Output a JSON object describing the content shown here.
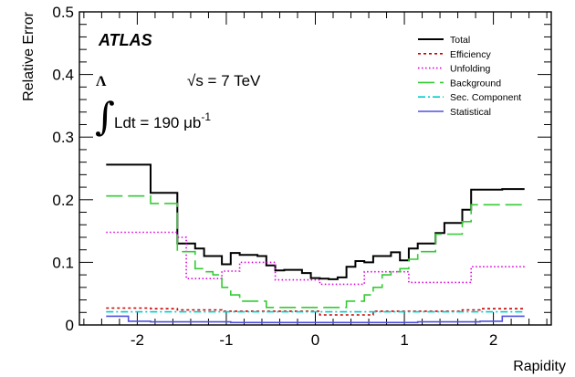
{
  "chart_data": {
    "type": "line",
    "xlabel": "Rapidity",
    "ylabel": "Relative Error",
    "xlim": [
      -2.65,
      2.65
    ],
    "ylim": [
      0,
      0.5
    ],
    "x_ticks": [
      "-2",
      "-1",
      "0",
      "1",
      "2"
    ],
    "y_ticks": [
      "0",
      "0.1",
      "0.2",
      "0.3",
      "0.4",
      "0.5"
    ],
    "grid": false,
    "legend_position": "top-right",
    "annotations": {
      "experiment": "ATLAS",
      "energy": "√s = 7 TeV",
      "lumi_symbol": "Λ",
      "lumi_integral": "∫",
      "lumi_text": "Ldt = 190 μb",
      "lumi_exp": "-1"
    },
    "bin_edges": [
      -2.35,
      -2.1,
      -1.85,
      -1.75,
      -1.55,
      -1.45,
      -1.35,
      -1.25,
      -1.15,
      -1.05,
      -0.95,
      -0.85,
      -0.75,
      -0.65,
      -0.55,
      -0.45,
      -0.35,
      -0.25,
      -0.15,
      -0.05,
      0.05,
      0.15,
      0.25,
      0.35,
      0.45,
      0.55,
      0.65,
      0.75,
      0.85,
      0.95,
      1.05,
      1.15,
      1.25,
      1.35,
      1.45,
      1.55,
      1.65,
      1.75,
      1.85,
      2.1,
      2.35
    ],
    "series": [
      {
        "name": "Total",
        "color": "#000000",
        "dash": "",
        "values": [
          0.256,
          0.256,
          0.211,
          0.211,
          0.13,
          0.13,
          0.122,
          0.11,
          0.11,
          0.097,
          0.115,
          0.112,
          0.112,
          0.11,
          0.095,
          0.087,
          0.088,
          0.088,
          0.083,
          0.075,
          0.074,
          0.073,
          0.076,
          0.093,
          0.102,
          0.1,
          0.11,
          0.11,
          0.116,
          0.103,
          0.122,
          0.13,
          0.13,
          0.147,
          0.163,
          0.163,
          0.184,
          0.216,
          0.216,
          0.217
        ]
      },
      {
        "name": "Efficiency",
        "color": "#cc0000",
        "dash": "3,3",
        "values": [
          0.027,
          0.027,
          0.026,
          0.026,
          0.024,
          0.024,
          0.024,
          0.024,
          0.024,
          0.022,
          0.022,
          0.022,
          0.022,
          0.022,
          0.022,
          0.022,
          0.022,
          0.022,
          0.022,
          0.022,
          0.016,
          0.016,
          0.016,
          0.016,
          0.016,
          0.016,
          0.022,
          0.022,
          0.022,
          0.022,
          0.022,
          0.022,
          0.022,
          0.022,
          0.022,
          0.022,
          0.024,
          0.024,
          0.026,
          0.026
        ]
      },
      {
        "name": "Unfolding",
        "color": "#dd00dd",
        "dash": "1.5,2.5",
        "values": [
          0.148,
          0.148,
          0.148,
          0.148,
          0.14,
          0.074,
          0.074,
          0.074,
          0.074,
          0.086,
          0.086,
          0.1,
          0.1,
          0.1,
          0.1,
          0.072,
          0.072,
          0.072,
          0.072,
          0.072,
          0.065,
          0.065,
          0.065,
          0.065,
          0.065,
          0.085,
          0.085,
          0.085,
          0.085,
          0.085,
          0.068,
          0.068,
          0.068,
          0.068,
          0.068,
          0.068,
          0.068,
          0.093,
          0.093,
          0.093
        ]
      },
      {
        "name": "Background",
        "color": "#33cc33",
        "dash": "18,6",
        "values": [
          0.206,
          0.206,
          0.194,
          0.194,
          0.117,
          0.117,
          0.09,
          0.085,
          0.08,
          0.06,
          0.048,
          0.038,
          0.038,
          0.038,
          0.028,
          0.028,
          0.028,
          0.028,
          0.028,
          0.028,
          0.028,
          0.028,
          0.028,
          0.038,
          0.038,
          0.048,
          0.06,
          0.08,
          0.085,
          0.09,
          0.105,
          0.117,
          0.117,
          0.145,
          0.145,
          0.145,
          0.165,
          0.192,
          0.192,
          0.192
        ]
      },
      {
        "name": "Sec. Component",
        "color": "#00cccc",
        "dash": "8,3,2,3",
        "values": [
          0.021,
          0.021,
          0.021,
          0.021,
          0.021,
          0.021,
          0.021,
          0.021,
          0.021,
          0.021,
          0.021,
          0.021,
          0.021,
          0.021,
          0.021,
          0.021,
          0.021,
          0.021,
          0.021,
          0.021,
          0.021,
          0.021,
          0.021,
          0.021,
          0.021,
          0.021,
          0.021,
          0.021,
          0.021,
          0.021,
          0.021,
          0.021,
          0.021,
          0.021,
          0.021,
          0.021,
          0.021,
          0.021,
          0.021,
          0.021
        ]
      },
      {
        "name": "Statistical",
        "color": "#5050dd",
        "dash": "",
        "values": [
          0.014,
          0.006,
          0.005,
          0.005,
          0.005,
          0.005,
          0.005,
          0.005,
          0.005,
          0.005,
          0.004,
          0.004,
          0.004,
          0.004,
          0.004,
          0.004,
          0.004,
          0.004,
          0.004,
          0.004,
          0.004,
          0.004,
          0.004,
          0.004,
          0.004,
          0.004,
          0.004,
          0.004,
          0.004,
          0.004,
          0.004,
          0.005,
          0.005,
          0.005,
          0.005,
          0.005,
          0.005,
          0.005,
          0.006,
          0.014
        ]
      }
    ]
  }
}
